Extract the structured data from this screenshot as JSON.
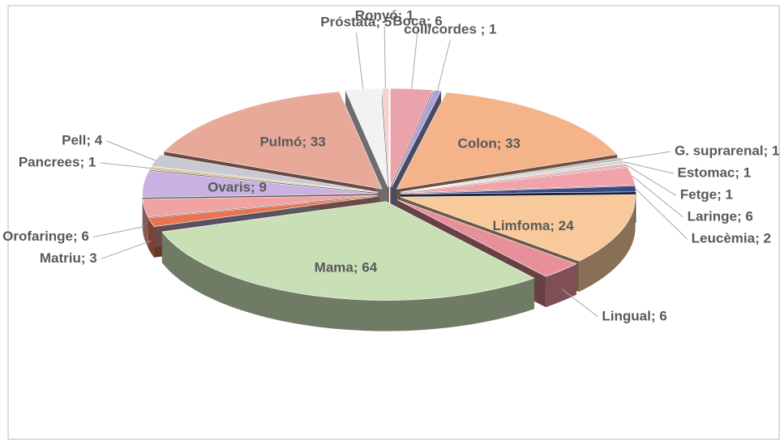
{
  "chart_data": {
    "type": "pie",
    "categories": [
      "Boca",
      "coll/cordes",
      "Colon",
      "G. suprarenal",
      "Estomac",
      "Fetge",
      "Laringe",
      "Leucèmia",
      "Limfoma",
      "Lingual",
      "Mama",
      "Matriu",
      "Orofaringe",
      "Ovaris",
      "Pancrees",
      "Pell",
      "Pulmó",
      "Próstata",
      "Ronyó"
    ],
    "values": [
      6,
      1,
      33,
      1,
      1,
      1,
      6,
      2,
      24,
      6,
      64,
      3,
      6,
      9,
      1,
      4,
      33,
      5,
      1
    ],
    "value_labels": [
      "Boca; 6",
      "coll/cordes ; 1",
      "Colon; 33",
      "G. suprarenal; 1",
      "Estomac; 1",
      "Fetge; 1",
      "Laringe; 6",
      "Leucèmia; 2",
      "Limfoma; 24",
      "Lingual; 6",
      "Mama; 64",
      "Matriu; 3",
      "Orofaringe; 6",
      "Ovaris; 9",
      "Pancrees; 1",
      "Pell; 4",
      "Pulmó; 33",
      "Próstata; 5",
      "Ronyó; 1"
    ],
    "colors": [
      "#eba3ab",
      "#a9a2dc",
      "#f5b38a",
      "#bfbfbf",
      "#d2d2d2",
      "#e9b1b1",
      "#f2a2aa",
      "#3b4a82",
      "#f8c99a",
      "#e8909a",
      "#c9e0b7",
      "#e87452",
      "#f1a3a1",
      "#c8b2e2",
      "#d9c2a2",
      "#c9c9d2",
      "#e9a999",
      "#f2f2f2",
      "#f7d0d0"
    ]
  }
}
